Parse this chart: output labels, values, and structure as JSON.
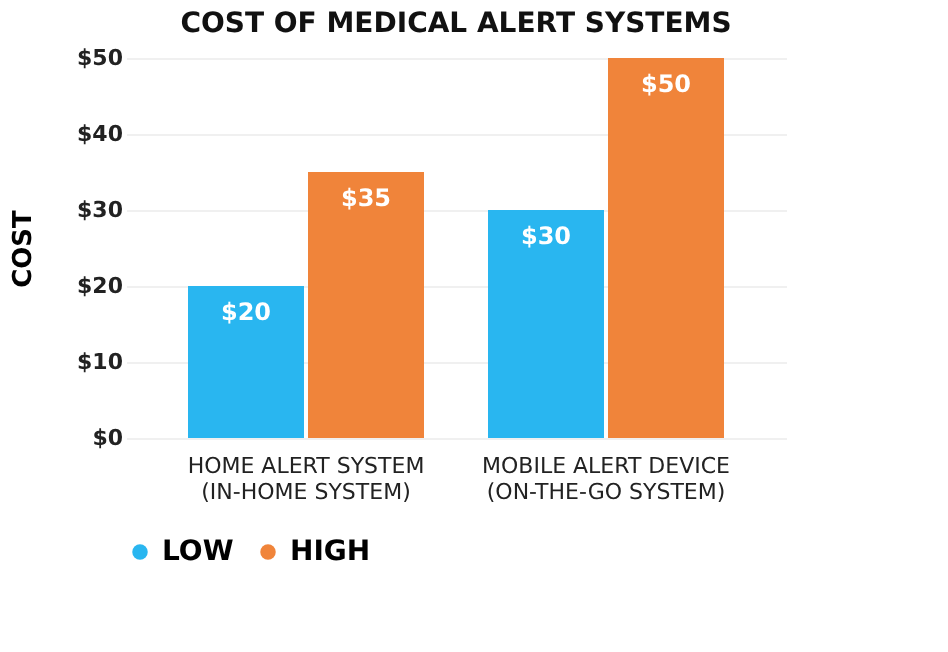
{
  "chart_data": {
    "type": "bar",
    "title": "COST OF MEDICAL ALERT SYSTEMS",
    "ylabel": "COST",
    "categories": [
      "HOME ALERT SYSTEM\n(IN-HOME SYSTEM)",
      "MOBILE ALERT DEVICE\n(ON-THE-GO SYSTEM)"
    ],
    "series": [
      {
        "name": "LOW",
        "color": "#29b6f0",
        "values": [
          20,
          30
        ],
        "value_labels": [
          "$20",
          "$30"
        ]
      },
      {
        "name": "HIGH",
        "color": "#f0843a",
        "values": [
          35,
          50
        ],
        "value_labels": [
          "$35",
          "$50"
        ]
      }
    ],
    "ylim": [
      0,
      50
    ],
    "yticks": [
      {
        "value": 0,
        "label": "$0"
      },
      {
        "value": 10,
        "label": "$10"
      },
      {
        "value": 20,
        "label": "$20"
      },
      {
        "value": 30,
        "label": "$30"
      },
      {
        "value": 40,
        "label": "$40"
      },
      {
        "value": 50,
        "label": "$50"
      }
    ],
    "grid": "y",
    "legend": "bottom"
  }
}
